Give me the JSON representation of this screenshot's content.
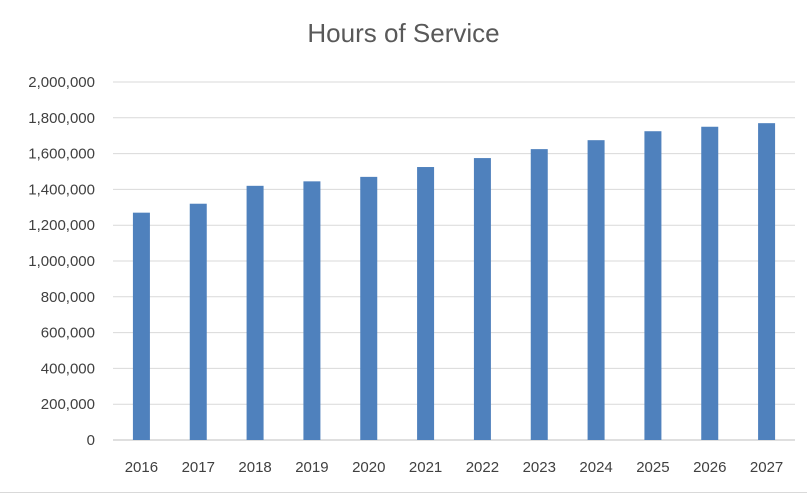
{
  "chart_data": {
    "type": "bar",
    "title": "Hours of Service",
    "xlabel": "",
    "ylabel": "",
    "categories": [
      "2016",
      "2017",
      "2018",
      "2019",
      "2020",
      "2021",
      "2022",
      "2023",
      "2024",
      "2025",
      "2026",
      "2027"
    ],
    "values": [
      1270000,
      1320000,
      1420000,
      1445000,
      1470000,
      1525000,
      1575000,
      1625000,
      1675000,
      1725000,
      1750000,
      1770000
    ],
    "ylim": [
      0,
      2000000
    ],
    "yticks": [
      0,
      200000,
      400000,
      600000,
      800000,
      1000000,
      1200000,
      1400000,
      1600000,
      1800000,
      2000000
    ],
    "ytick_labels": [
      "0",
      "200,000",
      "400,000",
      "600,000",
      "800,000",
      "1,000,000",
      "1,200,000",
      "1,400,000",
      "1,600,000",
      "1,800,000",
      "2,000,000"
    ],
    "grid": true,
    "legend": "none",
    "colors": {
      "bar": "#4f81bd",
      "grid": "#d9d9d9",
      "axis": "#bfbfbf",
      "text": "#404040"
    }
  }
}
